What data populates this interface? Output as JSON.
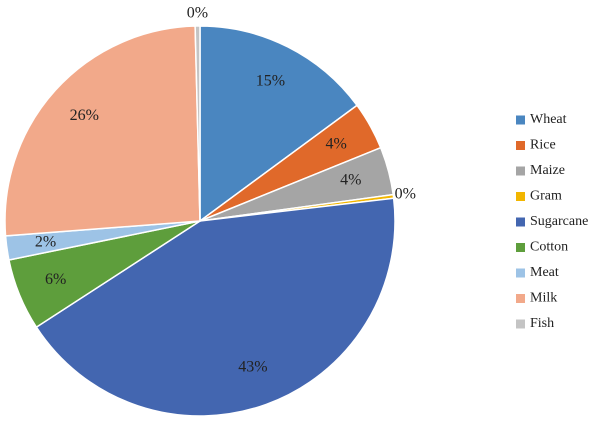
{
  "chart_data": {
    "type": "pie",
    "categories": [
      "Wheat",
      "Rice",
      "Maize",
      "Gram",
      "Sugarcane",
      "Cotton",
      "Meat",
      "Milk",
      "Fish"
    ],
    "values": [
      15,
      4,
      4,
      0.3,
      43,
      6,
      2,
      26,
      0.4
    ],
    "value_labels": [
      "15%",
      "4%",
      "4%",
      "0%",
      "43%",
      "6%",
      "2%",
      "26%",
      "0%"
    ],
    "colors": [
      "#4a86c0",
      "#e0692a",
      "#a5a5a5",
      "#f2b600",
      "#4366b0",
      "#5e9e3c",
      "#9dc3e6",
      "#f2a98a",
      "#c4c4c4"
    ],
    "legend": "right"
  }
}
